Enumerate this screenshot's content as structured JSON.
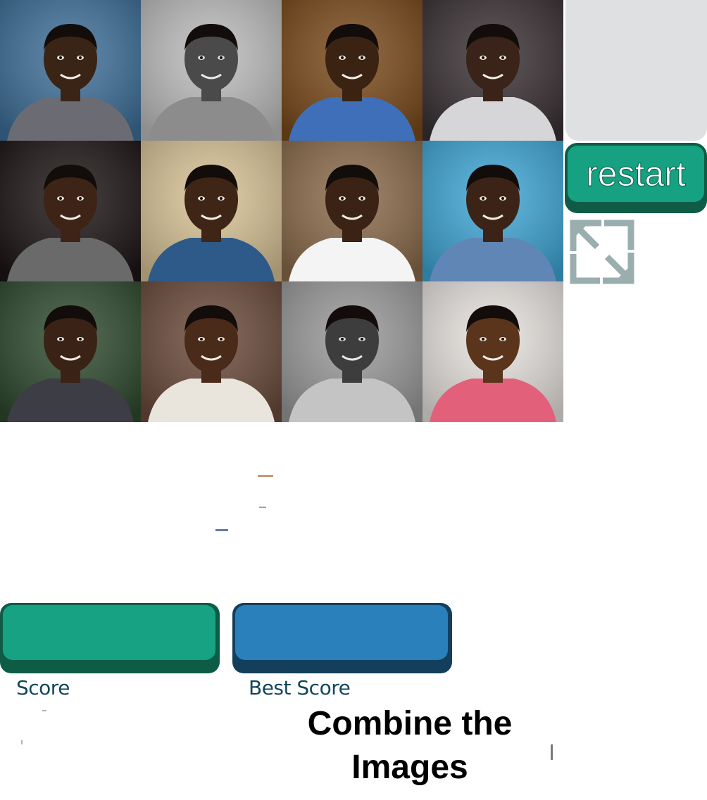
{
  "game": {
    "title": "Combine the Images",
    "instruction": "Combine the Images",
    "grid_columns": 4,
    "grid_rows": 3
  },
  "controls": {
    "restart_label": "restart",
    "fullscreen_icon": "expand-arrows-icon"
  },
  "scoreboard": {
    "score_label": "Score",
    "score_value": "",
    "best_label": "Best Score",
    "best_value": ""
  },
  "tiles": [
    {
      "name": "tile-1",
      "icon": "portrait-photo",
      "bg": "#3e6f99",
      "skin": "#3a2416",
      "shirt": "#6b6b73",
      "tone": "color"
    },
    {
      "name": "tile-2",
      "icon": "portrait-photo",
      "bg": "#bdbdbd",
      "skin": "#4a4a4a",
      "shirt": "#8c8c8c",
      "tone": "grey"
    },
    {
      "name": "tile-3",
      "icon": "portrait-photo",
      "bg": "#7a4a1a",
      "skin": "#3b2314",
      "shirt": "#3e6fb8",
      "tone": "color"
    },
    {
      "name": "tile-4",
      "icon": "portrait-photo",
      "bg": "#3a3134",
      "skin": "#3a2318",
      "shirt": "#d6d6d9",
      "tone": "color"
    },
    {
      "name": "tile-5",
      "icon": "portrait-photo",
      "bg": "#1c1414",
      "skin": "#3d2417",
      "shirt": "#6a6a6a",
      "tone": "color"
    },
    {
      "name": "tile-6",
      "icon": "portrait-photo",
      "bg": "#d9c396",
      "skin": "#3e2516",
      "shirt": "#2e5a8a",
      "tone": "color"
    },
    {
      "name": "tile-7",
      "icon": "portrait-photo",
      "bg": "#8a6a4a",
      "skin": "#3a2214",
      "shirt": "#f4f4f4",
      "tone": "color"
    },
    {
      "name": "tile-8",
      "icon": "portrait-photo",
      "bg": "#3fa6d6",
      "skin": "#3b2417",
      "shirt": "#5f86b5",
      "tone": "color"
    },
    {
      "name": "tile-9",
      "icon": "portrait-photo",
      "bg": "#2f4a2e",
      "skin": "#3a2316",
      "shirt": "#3d3d45",
      "tone": "color"
    },
    {
      "name": "tile-10",
      "icon": "portrait-photo",
      "bg": "#6a4a3a",
      "skin": "#4a2a18",
      "shirt": "#e9e4dc",
      "tone": "color"
    },
    {
      "name": "tile-11",
      "icon": "portrait-photo",
      "bg": "#9a9a9a",
      "skin": "#3d3d3d",
      "shirt": "#c4c4c4",
      "tone": "grey"
    },
    {
      "name": "tile-12",
      "icon": "portrait-photo",
      "bg": "#e7e3df",
      "skin": "#5b341c",
      "shirt": "#e2607a",
      "tone": "color"
    }
  ],
  "colors": {
    "restart_face": "#16a183",
    "restart_shadow": "#0f5c46",
    "score_face": "#17a283",
    "best_face": "#2a80ba",
    "label_text": "#12475c",
    "preview_box": "#dfe0e2"
  }
}
